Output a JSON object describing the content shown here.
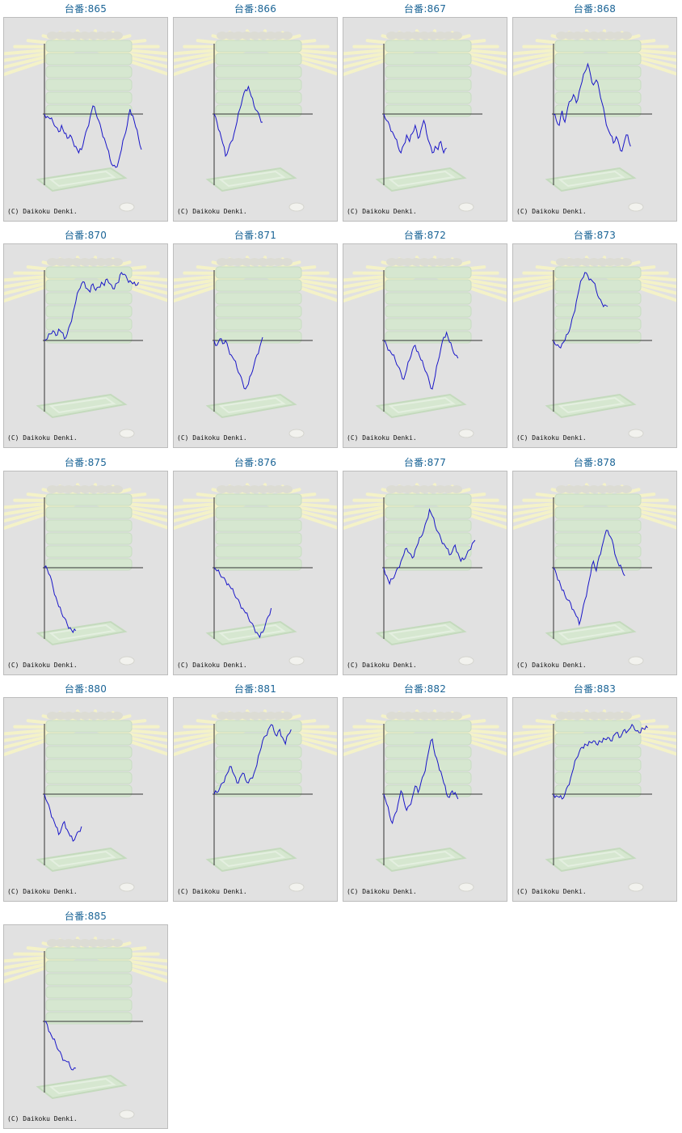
{
  "copyright": "(C) Daikoku Denki.",
  "colors": {
    "line": "#1a16c8",
    "title": "#1a6496",
    "axis": "#333333",
    "frame_bg": "#e1e1e1"
  },
  "tiles": [
    {
      "title": "台番:865",
      "series": [
        0,
        -3,
        -6,
        -10,
        -16,
        -22,
        -14,
        -24,
        -30,
        -26,
        -34,
        -40,
        -48,
        -44,
        -30,
        -18,
        -4,
        10,
        2,
        -8,
        -20,
        -30,
        -42,
        -56,
        -64,
        -66,
        -58,
        -44,
        -28,
        -14,
        6,
        -2,
        -16,
        -30,
        -44
      ]
    },
    {
      "title": "台番:866",
      "series": [
        0,
        -10,
        -22,
        -36,
        -52,
        -44,
        -34,
        -24,
        -10,
        6,
        20,
        30,
        34,
        22,
        10,
        4,
        -4,
        -10
      ]
    },
    {
      "title": "台番:867",
      "series": [
        0,
        -8,
        -14,
        -22,
        -30,
        -40,
        -48,
        -38,
        -26,
        -34,
        -24,
        -14,
        -30,
        -20,
        -8,
        -24,
        -36,
        -48,
        -40,
        -44,
        -34,
        -48,
        -42
      ]
    },
    {
      "title": "台番:868",
      "series": [
        0,
        -8,
        -14,
        4,
        -10,
        8,
        16,
        24,
        14,
        28,
        40,
        52,
        62,
        48,
        36,
        42,
        30,
        14,
        -2,
        -18,
        -26,
        -36,
        -28,
        -38,
        -46,
        -32,
        -26,
        -40
      ]
    },
    {
      "title": "台番:870",
      "series": [
        0,
        2,
        8,
        12,
        6,
        14,
        10,
        2,
        8,
        20,
        34,
        48,
        62,
        70,
        72,
        64,
        60,
        70,
        62,
        66,
        72,
        68,
        76,
        70,
        64,
        70,
        72,
        84,
        82,
        76,
        74,
        70,
        68,
        72
      ]
    },
    {
      "title": "台番:871",
      "series": [
        0,
        -6,
        2,
        -4,
        0,
        -10,
        -18,
        -24,
        -34,
        -42,
        -52,
        -60,
        -54,
        -42,
        -30,
        -18,
        -8,
        4
      ]
    },
    {
      "title": "台番:872",
      "series": [
        0,
        -6,
        -12,
        -18,
        -24,
        -32,
        -40,
        -48,
        -36,
        -24,
        -12,
        -6,
        -14,
        -24,
        -32,
        -40,
        -52,
        -60,
        -44,
        -26,
        -10,
        4,
        10,
        -2,
        -10,
        -18,
        -22
      ]
    },
    {
      "title": "台番:873",
      "series": [
        0,
        -6,
        -8,
        -4,
        0,
        8,
        18,
        32,
        48,
        64,
        76,
        84,
        80,
        76,
        72,
        62,
        52,
        46,
        44,
        42
      ]
    },
    {
      "title": "台番:875",
      "series": [
        0,
        -2,
        -10,
        -24,
        -36,
        -48,
        -56,
        -62,
        -70,
        -74,
        -80,
        -78
      ]
    },
    {
      "title": "台番:876",
      "series": [
        0,
        -4,
        -8,
        -12,
        -16,
        -20,
        -26,
        -32,
        -38,
        -44,
        -50,
        -56,
        -62,
        -68,
        -74,
        -80,
        -86,
        -80,
        -70,
        -60,
        -50
      ]
    },
    {
      "title": "台番:877",
      "series": [
        0,
        -10,
        -20,
        -14,
        -8,
        0,
        8,
        16,
        24,
        18,
        12,
        22,
        30,
        38,
        46,
        58,
        72,
        64,
        52,
        44,
        36,
        30,
        24,
        16,
        20,
        28,
        18,
        8,
        10,
        16,
        22,
        30,
        34
      ]
    },
    {
      "title": "台番:878",
      "series": [
        0,
        -8,
        -16,
        -28,
        -34,
        -40,
        -44,
        -52,
        -60,
        -70,
        -56,
        -40,
        -24,
        -8,
        8,
        -4,
        14,
        26,
        40,
        46,
        38,
        28,
        12,
        2,
        -2,
        -10
      ]
    },
    {
      "title": "台番:880",
      "series": [
        0,
        -10,
        -20,
        -30,
        -40,
        -50,
        -42,
        -34,
        -44,
        -52,
        -58,
        -52,
        -46,
        -40
      ]
    },
    {
      "title": "台番:881",
      "series": [
        0,
        2,
        8,
        14,
        22,
        28,
        34,
        24,
        14,
        20,
        26,
        18,
        14,
        20,
        26,
        36,
        52,
        66,
        72,
        80,
        86,
        78,
        72,
        80,
        70,
        62,
        74,
        80
      ]
    },
    {
      "title": "台番:882",
      "series": [
        0,
        -12,
        -26,
        -36,
        -24,
        -12,
        4,
        -8,
        -20,
        -14,
        -4,
        10,
        2,
        14,
        24,
        40,
        58,
        68,
        48,
        38,
        28,
        14,
        0,
        -4,
        4,
        2,
        -6
      ]
    },
    {
      "title": "台番:883",
      "series": [
        0,
        -2,
        -4,
        -6,
        0,
        10,
        20,
        32,
        44,
        52,
        58,
        62,
        60,
        64,
        66,
        62,
        66,
        64,
        68,
        70,
        66,
        72,
        76,
        70,
        74,
        80,
        78,
        82,
        84,
        78,
        76,
        82,
        80,
        82
      ]
    },
    {
      "title": "台番:885",
      "series": [
        0,
        -4,
        -14,
        -22,
        -28,
        -36,
        -42,
        -48,
        -50,
        -56,
        -60,
        -58
      ]
    }
  ]
}
